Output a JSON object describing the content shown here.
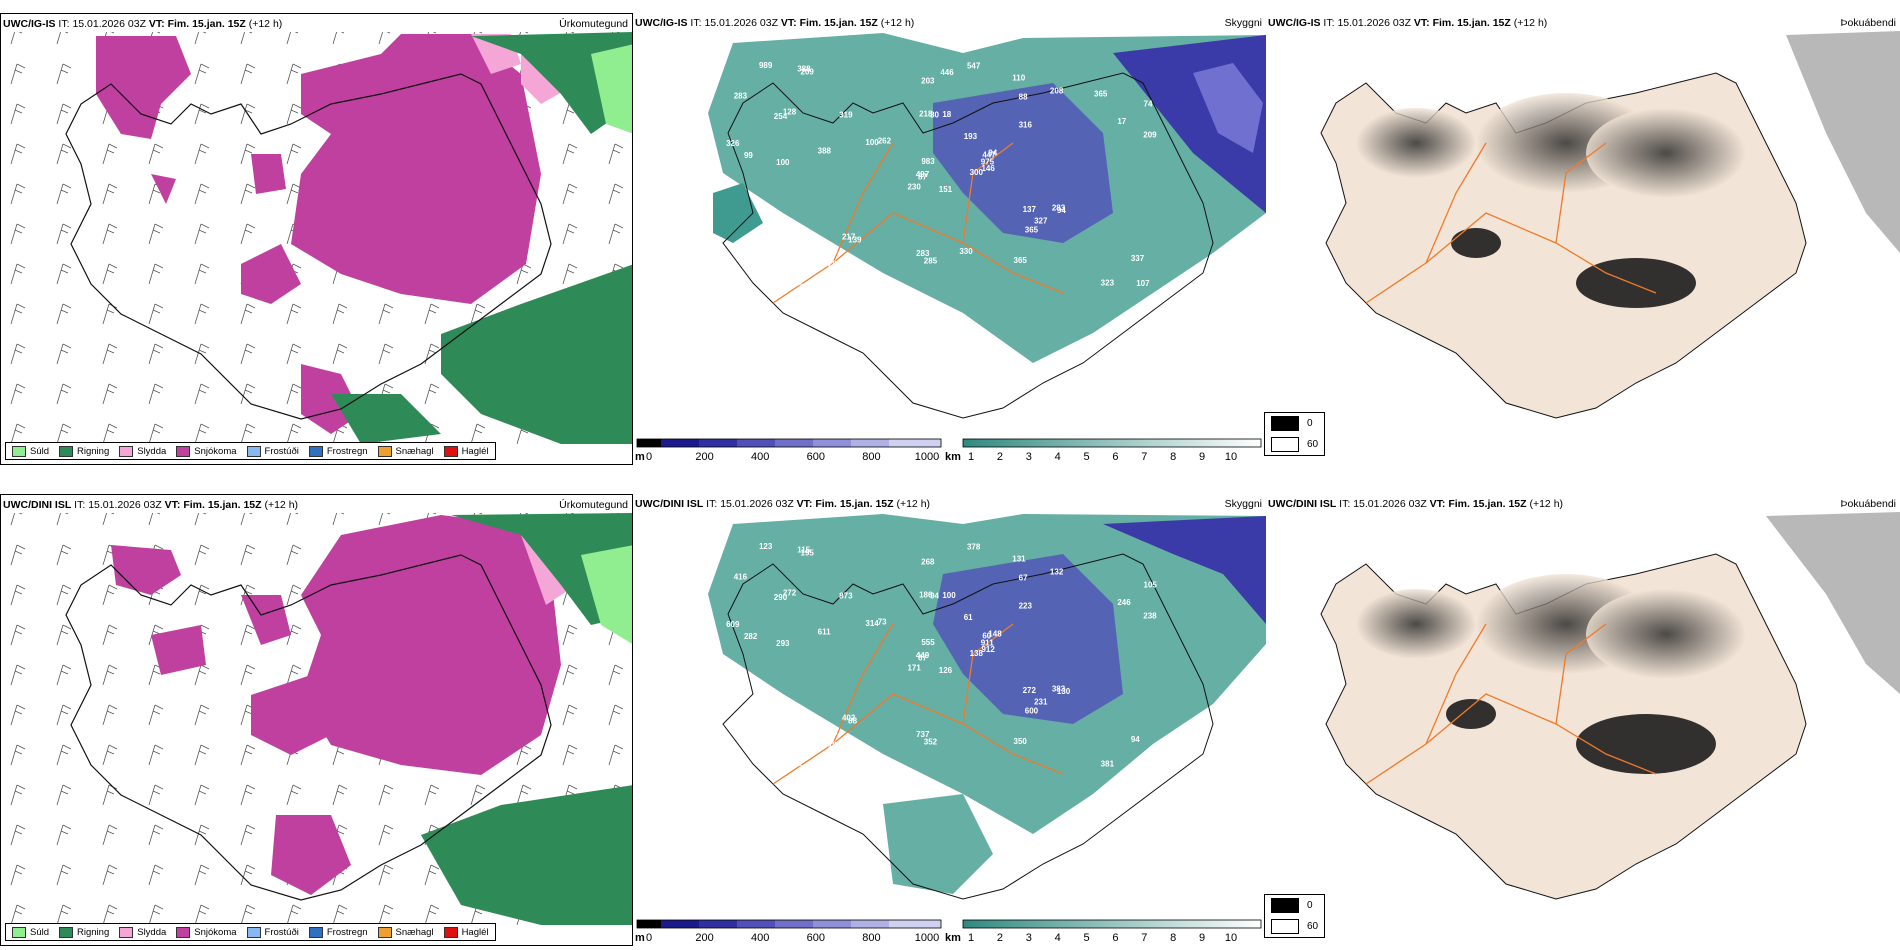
{
  "common": {
    "it_label": "IT:",
    "it_value": "15.01.2026 03Z",
    "vt_label": "VT:",
    "vt_value": "Fim. 15.jan. 15Z",
    "lead": "(+12 h)"
  },
  "rows": [
    {
      "model": "UWC/IG-IS",
      "panels": [
        {
          "name": "Úrkomutegund"
        },
        {
          "name": "Skyggni"
        },
        {
          "name": "Þokuábendi"
        }
      ],
      "visibility_values": [
        "151",
        "254",
        "87",
        "64",
        "447",
        "139",
        "110",
        "18",
        "88",
        "300",
        "209",
        "107",
        "100",
        "74",
        "230",
        "316",
        "278",
        "218",
        "193",
        "210",
        "262",
        "50",
        "209",
        "80",
        "94",
        "94",
        "128",
        "203",
        "99",
        "137",
        "209",
        "497",
        "283",
        "983",
        "319",
        "208",
        "217",
        "323",
        "337",
        "283",
        "547",
        "100",
        "388",
        "365",
        "420",
        "326",
        "975",
        "177",
        "285",
        "146",
        "186",
        "17",
        "283",
        "327",
        "365",
        "310",
        "388",
        "989",
        "330",
        "365",
        "446"
      ]
    },
    {
      "model": "UWC/DINI ISL",
      "panels": [
        {
          "name": "Úrkomutegund"
        },
        {
          "name": "Skyggni"
        },
        {
          "name": "Þokuábendi"
        }
      ],
      "visibility_values": [
        "126",
        "290",
        "67",
        "124",
        "60",
        "88",
        "131",
        "100",
        "67",
        "138",
        "195",
        "377",
        "293",
        "105",
        "171",
        "223",
        "304",
        "186",
        "61",
        "285",
        "73",
        "92",
        "102",
        "94",
        "148",
        "130",
        "272",
        "268",
        "282",
        "272",
        "238",
        "449",
        "737",
        "555",
        "873",
        "132",
        "402",
        "381",
        "94",
        "383",
        "378",
        "314",
        "611",
        "600",
        "287",
        "609",
        "911",
        "180",
        "352",
        "912",
        "597",
        "246",
        "416",
        "231",
        "350",
        "125",
        "115",
        "123"
      ]
    }
  ],
  "precip_legend": [
    {
      "label": "Súld",
      "color": "#90ee90"
    },
    {
      "label": "Rigning",
      "color": "#2e8b57"
    },
    {
      "label": "Slydda",
      "color": "#f4a6d7"
    },
    {
      "label": "Snjókoma",
      "color": "#c040a0"
    },
    {
      "label": "Frostúði",
      "color": "#87b8f0"
    },
    {
      "label": "Frostregn",
      "color": "#3070c0"
    },
    {
      "label": "Snæhagl",
      "color": "#f0a030"
    },
    {
      "label": "Haglél",
      "color": "#e01010"
    }
  ],
  "cbar_m": {
    "unit": "m",
    "ticks": [
      "0",
      "200",
      "400",
      "600",
      "800",
      "1000"
    ]
  },
  "cbar_km": {
    "unit": "km",
    "ticks": [
      "1",
      "2",
      "3",
      "4",
      "5",
      "6",
      "7",
      "8",
      "9",
      "10"
    ]
  },
  "fog_legend": [
    {
      "label": "0"
    },
    {
      "label": "60"
    }
  ],
  "colors": {
    "snow": "#c040a0",
    "sleet": "#f4a6d7",
    "rain": "#2e8b57",
    "drizzle": "#90ee90",
    "vis_teal": "#3f9b8f",
    "vis_blue": "#3a3aa8",
    "land_fog": "#f2e4d6",
    "road": "#f07a2a"
  }
}
